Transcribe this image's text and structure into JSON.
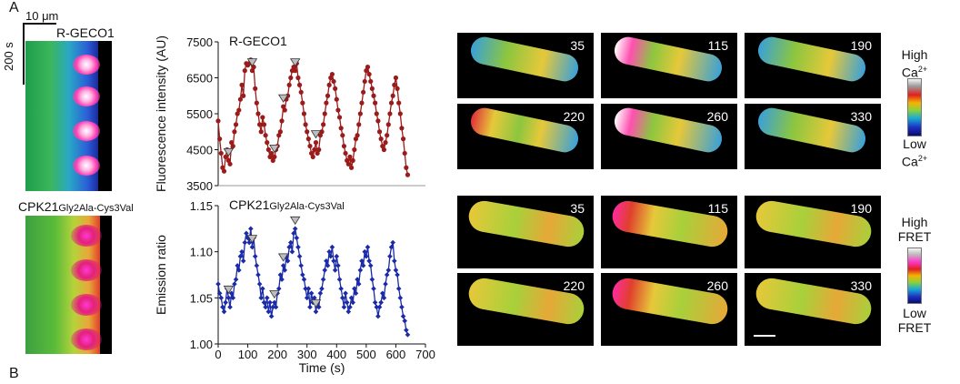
{
  "figure": {
    "label_a": "A",
    "label_b": "B",
    "scale_um": "10 μm",
    "scale_s": "200 s",
    "kymo1_title": "R-GECO1",
    "kymo2_title": "CPK21",
    "kymo2_sub": "Gly2Ala-Cys3Val",
    "times": [
      "35",
      "115",
      "190",
      "220",
      "260",
      "330"
    ],
    "legend1": {
      "high": "High",
      "high_ion": "Ca",
      "low": "Low",
      "low_ion": "Ca",
      "ion_sup": "2+"
    },
    "legend2": {
      "high": "High",
      "high_sub": "FRET",
      "low": "Low",
      "low_sub": "FRET"
    },
    "colors": {
      "red_series": "#9b1b1b",
      "blue_series": "#1a2aa8",
      "marker": "#bdbdbd"
    }
  },
  "chart_data": [
    {
      "type": "line",
      "title": "R-GECO1",
      "xlabel": "",
      "ylabel": "Fluorescence intensity (AU)",
      "ylim": [
        3500,
        7500
      ],
      "yticks": [
        3500,
        4500,
        5500,
        6500,
        7500
      ],
      "xlim": [
        0,
        700
      ],
      "series": [
        {
          "x": [
            0,
            5,
            10,
            15,
            20,
            25,
            30,
            35,
            40,
            45,
            50,
            55,
            60,
            65,
            70,
            75,
            80,
            85,
            90,
            95,
            100,
            105,
            110,
            115,
            120,
            125,
            130,
            135,
            140,
            145,
            150,
            155,
            160,
            165,
            170,
            175,
            180,
            185,
            190,
            195,
            200,
            205,
            210,
            215,
            220,
            225,
            230,
            235,
            240,
            245,
            250,
            255,
            260,
            265,
            270,
            275,
            280,
            285,
            290,
            295,
            300,
            305,
            310,
            315,
            320,
            325,
            330,
            335,
            340,
            345,
            350,
            355,
            360,
            365,
            370,
            375,
            380,
            385,
            390,
            395,
            400,
            405,
            410,
            415,
            420,
            425,
            430,
            435,
            440,
            445,
            450,
            455,
            460,
            465,
            470,
            475,
            480,
            485,
            490,
            495,
            500,
            505,
            510,
            515,
            520,
            525,
            530,
            535,
            540,
            545,
            550,
            555,
            560,
            565,
            570,
            575,
            580,
            585,
            590,
            595,
            600,
            605,
            610,
            615,
            620,
            625,
            630,
            635,
            640
          ],
          "y": [
            5300,
            4800,
            4400,
            4000,
            3900,
            4300,
            4500,
            4200,
            4100,
            4700,
            4600,
            5000,
            5200,
            5500,
            5600,
            5900,
            6300,
            6000,
            6700,
            6900,
            6850,
            6900,
            7000,
            6700,
            6800,
            6200,
            5800,
            5500,
            5200,
            5000,
            5400,
            5200,
            4900,
            4700,
            4500,
            4300,
            4400,
            4200,
            4300,
            4500,
            4600,
            4900,
            5000,
            5300,
            5700,
            5600,
            5900,
            6000,
            6300,
            6500,
            6700,
            6800,
            6700,
            6900,
            6500,
            6300,
            6100,
            5800,
            5500,
            5200,
            5000,
            4800,
            4600,
            4400,
            4300,
            4500,
            4700,
            4400,
            4500,
            4900,
            5000,
            5200,
            5500,
            5800,
            6000,
            6300,
            6500,
            6600,
            6400,
            6200,
            5900,
            5600,
            5400,
            5100,
            4900,
            4600,
            4400,
            4200,
            4100,
            4300,
            4000,
            4200,
            4500,
            4800,
            4900,
            5200,
            5500,
            5800,
            6100,
            6400,
            6700,
            6800,
            6600,
            6400,
            6200,
            6000,
            5800,
            5500,
            5300,
            5000,
            4800,
            4600,
            4500,
            4700,
            4900,
            5200,
            5500,
            5800,
            6000,
            6300,
            6500,
            6200,
            5800,
            5500,
            5100,
            4800,
            4400,
            4000,
            3800
          ]
        }
      ]
    },
    {
      "type": "line",
      "title": "CPK21",
      "subtitle": "Gly2Ala-Cys3Val",
      "xlabel": "Time (s)",
      "ylabel": "Emission ratio",
      "ylim": [
        1.0,
        1.15
      ],
      "yticks": [
        "1.00",
        "1.05",
        "1.10",
        "1.15"
      ],
      "xlim": [
        0,
        700
      ],
      "xticks": [
        0,
        100,
        200,
        300,
        400,
        500,
        600,
        700
      ],
      "series": [
        {
          "x": [
            0,
            5,
            10,
            15,
            20,
            25,
            30,
            35,
            40,
            45,
            50,
            55,
            60,
            65,
            70,
            75,
            80,
            85,
            90,
            95,
            100,
            105,
            110,
            115,
            120,
            125,
            130,
            135,
            140,
            145,
            150,
            155,
            160,
            165,
            170,
            175,
            180,
            185,
            190,
            195,
            200,
            205,
            210,
            215,
            220,
            225,
            230,
            235,
            240,
            245,
            250,
            255,
            260,
            265,
            270,
            275,
            280,
            285,
            290,
            295,
            300,
            305,
            310,
            315,
            320,
            325,
            330,
            335,
            340,
            345,
            350,
            355,
            360,
            365,
            370,
            375,
            380,
            385,
            390,
            395,
            400,
            405,
            410,
            415,
            420,
            425,
            430,
            435,
            440,
            445,
            450,
            455,
            460,
            465,
            470,
            475,
            480,
            485,
            490,
            495,
            500,
            505,
            510,
            515,
            520,
            525,
            530,
            535,
            540,
            545,
            550,
            555,
            560,
            565,
            570,
            575,
            580,
            585,
            590,
            595,
            600,
            605,
            610,
            615,
            620,
            625,
            630,
            635,
            640
          ],
          "y": [
            1.065,
            1.055,
            1.05,
            1.04,
            1.035,
            1.045,
            1.06,
            1.05,
            1.04,
            1.055,
            1.05,
            1.065,
            1.07,
            1.085,
            1.08,
            1.095,
            1.1,
            1.09,
            1.11,
            1.12,
            1.115,
            1.11,
            1.125,
            1.105,
            1.115,
            1.095,
            1.085,
            1.075,
            1.065,
            1.05,
            1.06,
            1.045,
            1.04,
            1.05,
            1.035,
            1.045,
            1.03,
            1.04,
            1.045,
            1.04,
            1.055,
            1.06,
            1.075,
            1.07,
            1.085,
            1.08,
            1.095,
            1.09,
            1.105,
            1.11,
            1.1,
            1.12,
            1.125,
            1.115,
            1.105,
            1.095,
            1.085,
            1.075,
            1.07,
            1.06,
            1.05,
            1.06,
            1.04,
            1.055,
            1.045,
            1.05,
            1.035,
            1.045,
            1.04,
            1.055,
            1.06,
            1.07,
            1.08,
            1.09,
            1.085,
            1.1,
            1.095,
            1.105,
            1.09,
            1.08,
            1.095,
            1.085,
            1.07,
            1.06,
            1.05,
            1.04,
            1.055,
            1.045,
            1.035,
            1.04,
            1.05,
            1.045,
            1.06,
            1.055,
            1.07,
            1.065,
            1.08,
            1.09,
            1.085,
            1.1,
            1.095,
            1.105,
            1.09,
            1.085,
            1.07,
            1.06,
            1.045,
            1.04,
            1.03,
            1.04,
            1.045,
            1.055,
            1.05,
            1.065,
            1.075,
            1.08,
            1.095,
            1.105,
            1.11,
            1.09,
            1.08,
            1.075,
            1.06,
            1.05,
            1.04,
            1.03,
            1.025,
            1.015,
            1.01
          ]
        }
      ]
    }
  ]
}
